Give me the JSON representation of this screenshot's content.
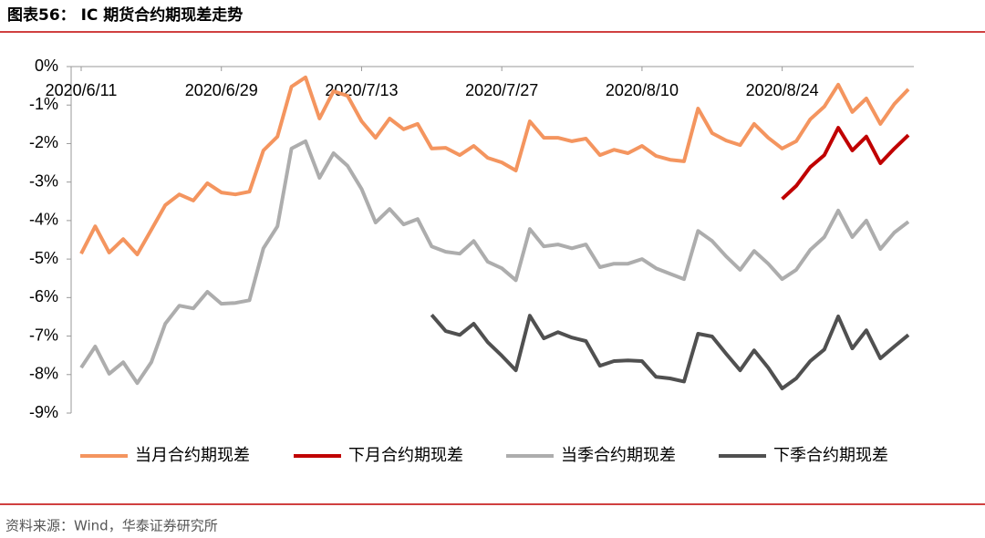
{
  "chart_data": {
    "type": "line",
    "title": "图表56：  IC 期货合约期现差走势",
    "source": "资料来源：Wind，华泰证券研究所",
    "categories": [
      "2020/6/11",
      null,
      null,
      null,
      null,
      null,
      null,
      null,
      null,
      null,
      "2020/6/29",
      null,
      null,
      null,
      null,
      null,
      null,
      null,
      null,
      null,
      "2020/7/13",
      null,
      null,
      null,
      null,
      null,
      null,
      null,
      null,
      null,
      "2020/7/27",
      null,
      null,
      null,
      null,
      null,
      null,
      null,
      null,
      null,
      "2020/8/10",
      null,
      null,
      null,
      null,
      null,
      null,
      null,
      null,
      null,
      "2020/8/24",
      null,
      null,
      null,
      null,
      null,
      null,
      null,
      null,
      null
    ],
    "series": [
      {
        "name": "当月合约期现差",
        "color": "#f4955f",
        "values": [
          -4.86,
          -4.15,
          -4.83,
          -4.48,
          -4.88,
          -4.24,
          -3.6,
          -3.32,
          -3.48,
          -3.03,
          -3.27,
          -3.32,
          -3.25,
          -2.18,
          -1.82,
          -0.52,
          -0.28,
          -1.35,
          -0.64,
          -0.76,
          -1.42,
          -1.85,
          -1.35,
          -1.63,
          -1.49,
          -2.13,
          -2.11,
          -2.3,
          -2.06,
          -2.37,
          -2.49,
          -2.7,
          -1.42,
          -1.85,
          -1.85,
          -1.94,
          -1.87,
          -2.3,
          -2.16,
          -2.25,
          -2.06,
          -2.32,
          -2.42,
          -2.46,
          -1.09,
          -1.73,
          -1.92,
          -2.04,
          -1.49,
          -1.85,
          -2.13,
          -1.94,
          -1.37,
          -1.04,
          -0.47,
          -1.18,
          -0.83,
          -1.49,
          -0.97,
          -0.59
        ]
      },
      {
        "name": "下月合约期现差",
        "color": "#c00000",
        "values": [
          null,
          null,
          null,
          null,
          null,
          null,
          null,
          null,
          null,
          null,
          null,
          null,
          null,
          null,
          null,
          null,
          null,
          null,
          null,
          null,
          null,
          null,
          null,
          null,
          null,
          null,
          null,
          null,
          null,
          null,
          null,
          null,
          null,
          null,
          null,
          null,
          null,
          null,
          null,
          null,
          null,
          null,
          null,
          null,
          null,
          null,
          null,
          null,
          null,
          null,
          -3.44,
          -3.1,
          -2.61,
          -2.3,
          -1.59,
          -2.18,
          -1.82,
          -2.51,
          -2.13,
          -1.78
        ]
      },
      {
        "name": "当季合约期现差",
        "color": "#adadad",
        "values": [
          -7.82,
          -7.27,
          -7.98,
          -7.68,
          -8.22,
          -7.68,
          -6.68,
          -6.21,
          -6.28,
          -5.85,
          -6.16,
          -6.14,
          -6.07,
          -4.72,
          -4.15,
          -2.13,
          -1.94,
          -2.89,
          -2.25,
          -2.58,
          -3.18,
          -4.05,
          -3.7,
          -4.1,
          -3.96,
          -4.67,
          -4.81,
          -4.86,
          -4.53,
          -5.07,
          -5.24,
          -5.55,
          -4.22,
          -4.67,
          -4.62,
          -4.72,
          -4.62,
          -5.21,
          -5.12,
          -5.12,
          -5.0,
          -5.24,
          -5.38,
          -5.52,
          -4.27,
          -4.53,
          -4.93,
          -5.28,
          -4.79,
          -5.12,
          -5.52,
          -5.28,
          -4.76,
          -4.43,
          -3.74,
          -4.43,
          -4.0,
          -4.74,
          -4.31,
          -4.03
        ]
      },
      {
        "name": "下季合约期现差",
        "color": "#505050",
        "values": [
          null,
          null,
          null,
          null,
          null,
          null,
          null,
          null,
          null,
          null,
          null,
          null,
          null,
          null,
          null,
          null,
          null,
          null,
          null,
          null,
          null,
          null,
          null,
          null,
          null,
          -6.45,
          -6.87,
          -6.97,
          -6.68,
          -7.16,
          -7.51,
          -7.89,
          -6.47,
          -7.06,
          -6.9,
          -7.04,
          -7.13,
          -7.77,
          -7.65,
          -7.63,
          -7.65,
          -8.06,
          -8.1,
          -8.18,
          -6.94,
          -7.01,
          -7.46,
          -7.89,
          -7.37,
          -7.82,
          -8.36,
          -8.1,
          -7.65,
          -7.35,
          -6.49,
          -7.32,
          -6.85,
          -7.58,
          -7.27,
          -6.97
        ]
      }
    ],
    "ylim": [
      -9,
      0
    ],
    "yticks": [
      {
        "value": 0,
        "label": "0%"
      },
      {
        "value": -1,
        "label": "-1%"
      },
      {
        "value": -2,
        "label": "-2%"
      },
      {
        "value": -3,
        "label": "-3%"
      },
      {
        "value": -4,
        "label": "-4%"
      },
      {
        "value": -5,
        "label": "-5%"
      },
      {
        "value": -6,
        "label": "-6%"
      },
      {
        "value": -7,
        "label": "-7%"
      },
      {
        "value": -8,
        "label": "-8%"
      },
      {
        "value": -9,
        "label": "-9%"
      }
    ],
    "legend": "bottom"
  }
}
